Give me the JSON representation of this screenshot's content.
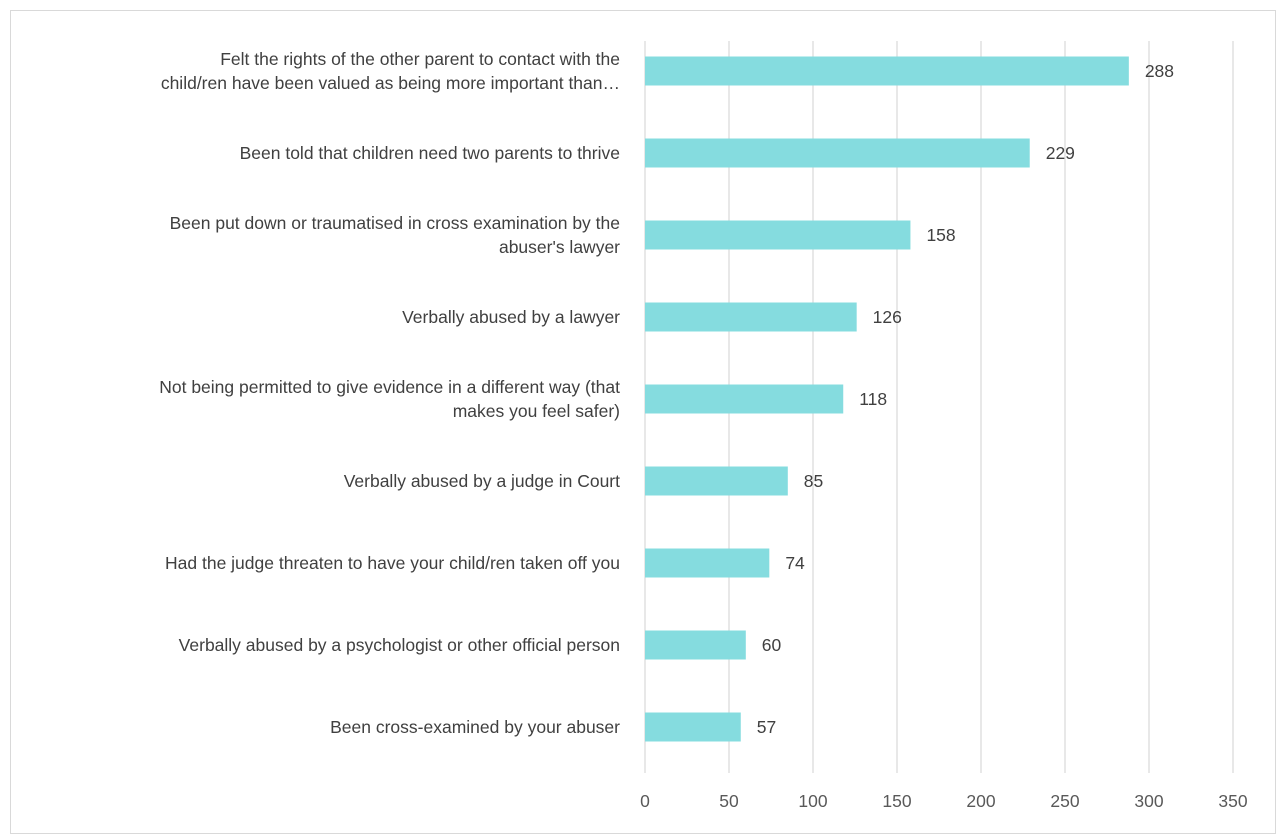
{
  "chart_data": {
    "type": "bar",
    "orientation": "horizontal",
    "title": "",
    "xlabel": "",
    "ylabel": "",
    "categories": [
      [
        "Felt the rights of the other parent to contact with the",
        "child/ren have been valued as being more important than…"
      ],
      [
        "Been told that children need two parents to thrive"
      ],
      [
        "Been put down or traumatised in cross examination by the",
        "abuser's lawyer"
      ],
      [
        "Verbally abused by a lawyer"
      ],
      [
        "Not being permitted to give evidence in a different way (that",
        "makes you feel safer)"
      ],
      [
        "Verbally abused by a judge in Court"
      ],
      [
        "Had the judge threaten to have your child/ren taken off you"
      ],
      [
        "Verbally abused by a psychologist or other official person"
      ],
      [
        "Been cross-examined by your abuser"
      ]
    ],
    "values": [
      288,
      229,
      158,
      126,
      118,
      85,
      74,
      60,
      57
    ],
    "xlim": [
      0,
      350
    ],
    "ticks": [
      0,
      50,
      100,
      150,
      200,
      250,
      300,
      350
    ],
    "grid": "vertical",
    "legend": "none",
    "colors": {
      "bar": "#85dcdf",
      "grid": "#d9d9d9",
      "text": "#404040",
      "tick_text": "#595959"
    }
  }
}
